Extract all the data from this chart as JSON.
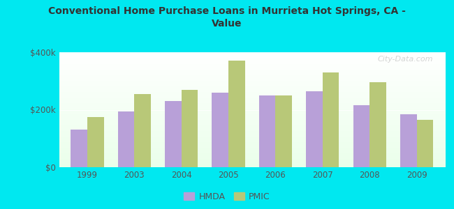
{
  "title": "Conventional Home Purchase Loans in Murrieta Hot Springs, CA -\nValue",
  "categories": [
    "1999",
    "2003",
    "2004",
    "2005",
    "2006",
    "2007",
    "2008",
    "2009"
  ],
  "hmda_values": [
    130000,
    195000,
    230000,
    260000,
    250000,
    265000,
    215000,
    185000
  ],
  "pmic_values": [
    175000,
    255000,
    270000,
    370000,
    250000,
    330000,
    295000,
    165000
  ],
  "hmda_color": "#b8a0d8",
  "pmic_color": "#b8c878",
  "background_outer": "#00e8f0",
  "ylim": [
    0,
    400000
  ],
  "yticks": [
    0,
    200000,
    400000
  ],
  "ytick_labels": [
    "$0",
    "$200k",
    "$400k"
  ],
  "bar_width": 0.35,
  "legend_labels": [
    "HMDA",
    "PMIC"
  ],
  "watermark": "City-Data.com"
}
